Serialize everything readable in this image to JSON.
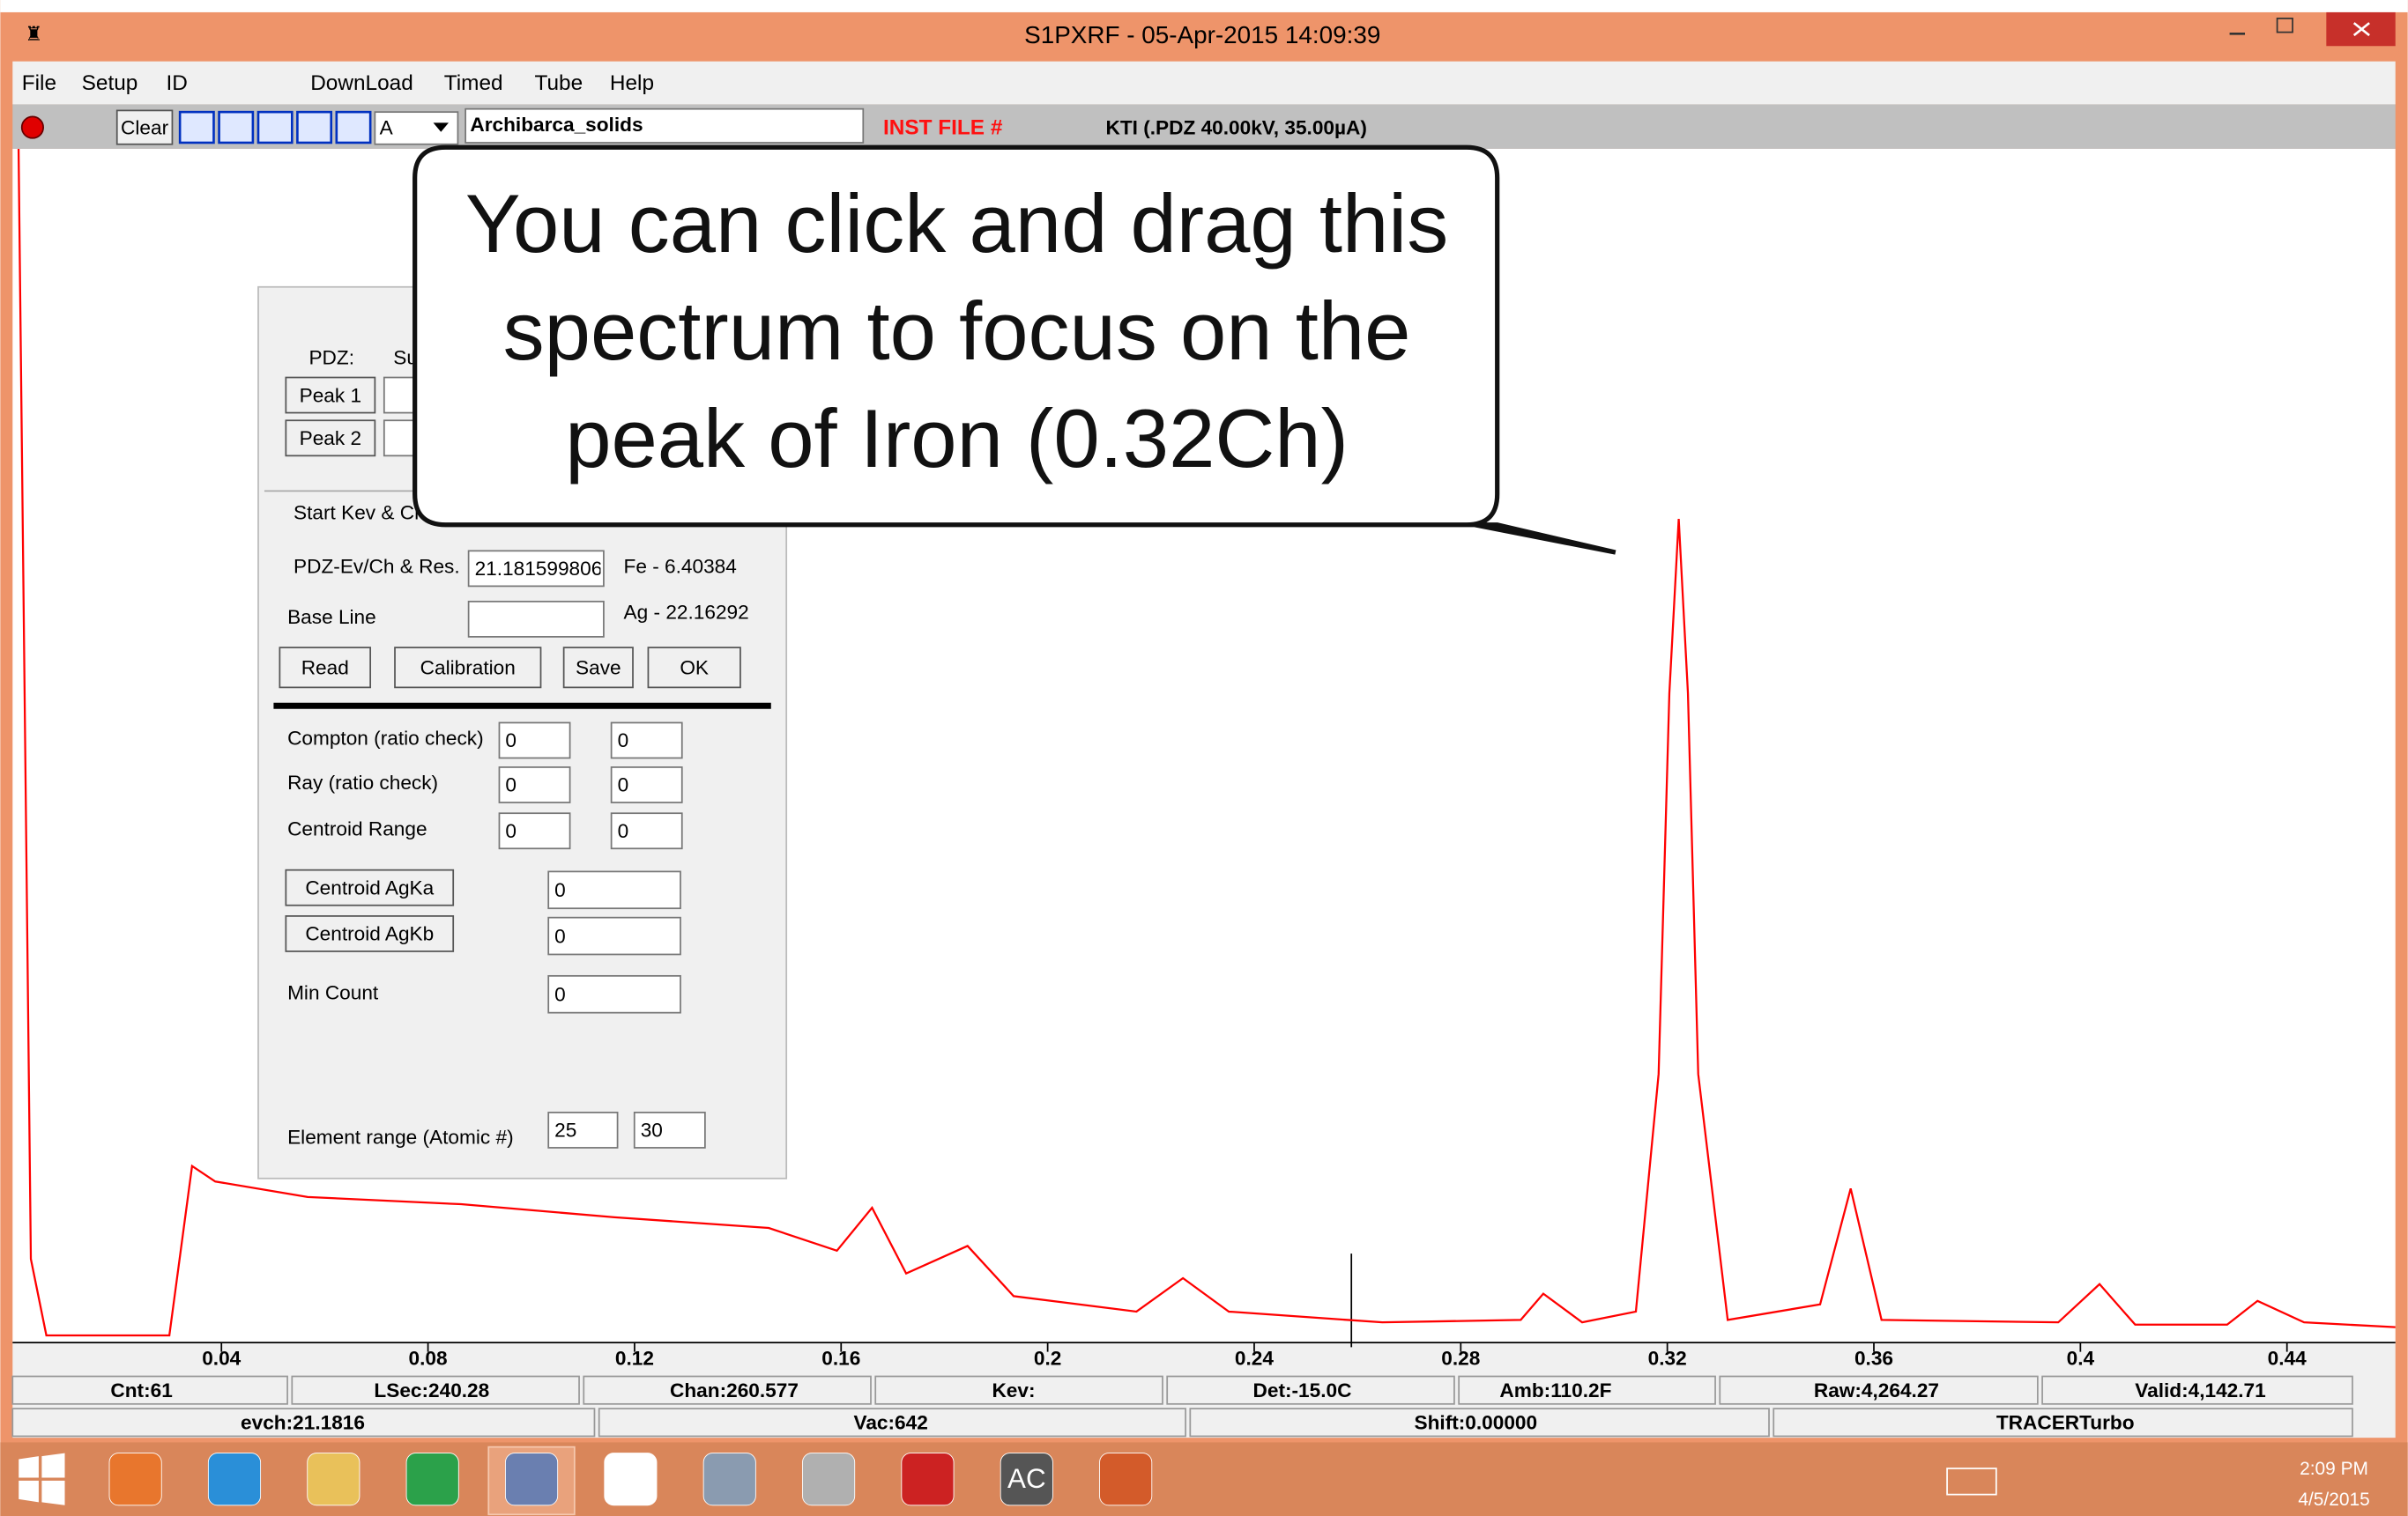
{
  "window": {
    "title": "S1PXRF - 05-Apr-2015 14:09:39"
  },
  "menu": [
    "File",
    "Setup",
    "ID",
    "DownLoad",
    "Timed",
    "Tube",
    "Help"
  ],
  "toolbar": {
    "clear": "Clear",
    "selector": "A",
    "file": "Archibarca_solids",
    "inst_file": "INST FILE #",
    "kti": "KTI  (.PDZ 40.00kV, 35.00µA)"
  },
  "dialog": {
    "pdz": "PDZ:",
    "su": "Su",
    "peak1": "Peak 1",
    "peak2": "Peak 2",
    "start_kev": "Start Kev & Ch",
    "ev_ch_label": "PDZ-Ev/Ch & Res.",
    "ev_ch_value": "21.181599806",
    "fe": "Fe - 6.40384",
    "base_line": "Base Line",
    "ag": "Ag - 22.16292",
    "buttons": [
      "Read",
      "Calibration",
      "Save",
      "OK"
    ],
    "rows": [
      {
        "label": "Compton (ratio check)",
        "a": "0",
        "b": "0"
      },
      {
        "label": "Ray (ratio check)",
        "a": "0",
        "b": "0"
      },
      {
        "label": "Centroid Range",
        "a": "0",
        "b": "0"
      }
    ],
    "centroid_agka": "Centroid AgKa",
    "agka_value": "0",
    "centroid_agkb": "Centroid AgKb",
    "agkb_value": "0",
    "min_count": "Min Count",
    "min_count_value": "0",
    "element_range": "Element range (Atomic #)",
    "element_from": "25",
    "element_to": "30"
  },
  "callout": {
    "lines": [
      "You can click and drag this",
      "spectrum to focus on the",
      "peak of Iron (0.32Ch)"
    ]
  },
  "chart_data": {
    "type": "line",
    "color": "#ff0000",
    "x": [
      0.0007,
      0.0031,
      0.0061,
      0.0299,
      0.0343,
      0.0388,
      0.0567,
      0.0864,
      0.1161,
      0.146,
      0.1592,
      0.166,
      0.1726,
      0.1845,
      0.1934,
      0.2172,
      0.2262,
      0.2351,
      0.2648,
      0.2916,
      0.296,
      0.3035,
      0.3139,
      0.3183,
      0.3204,
      0.3222,
      0.324,
      0.326,
      0.3317,
      0.3496,
      0.3555,
      0.3615,
      0.3957,
      0.4037,
      0.4106,
      0.4284,
      0.4343,
      0.4433,
      0.461
    ],
    "values": [
      100,
      7,
      0.6,
      0.6,
      14.8,
      13.5,
      12.2,
      11.6,
      10.5,
      9.6,
      7.7,
      11.3,
      5.8,
      8.1,
      3.9,
      2.6,
      5.4,
      2.6,
      1.7,
      1.9,
      4.1,
      1.7,
      2.6,
      22.5,
      54.4,
      69,
      54.4,
      22.5,
      1.9,
      3.2,
      12.9,
      1.9,
      1.7,
      4.9,
      1.5,
      1.5,
      3.5,
      1.7,
      1.3
    ],
    "xlim": [
      0,
      0.461
    ],
    "ylim": [
      0,
      100
    ],
    "xticks": [
      0.04,
      0.08,
      0.12,
      0.16,
      0.2,
      0.24,
      0.28,
      0.32,
      0.36,
      0.4,
      0.44
    ],
    "grid": false
  },
  "status": {
    "row1": [
      "Cnt:61",
      "LSec:240.28",
      "Chan:260.577",
      "Kev:",
      "Det:-15.0C",
      "Amb:110.2F",
      "Raw:4,264.27",
      "Valid:4,142.71"
    ],
    "row2": [
      "evch:21.1816",
      "Vac:642",
      "Shift:0.00000",
      "TRACERTurbo"
    ]
  },
  "taskbar": {
    "ac_icon": "AC",
    "time": "2:09 PM",
    "date": "4/5/2015"
  }
}
